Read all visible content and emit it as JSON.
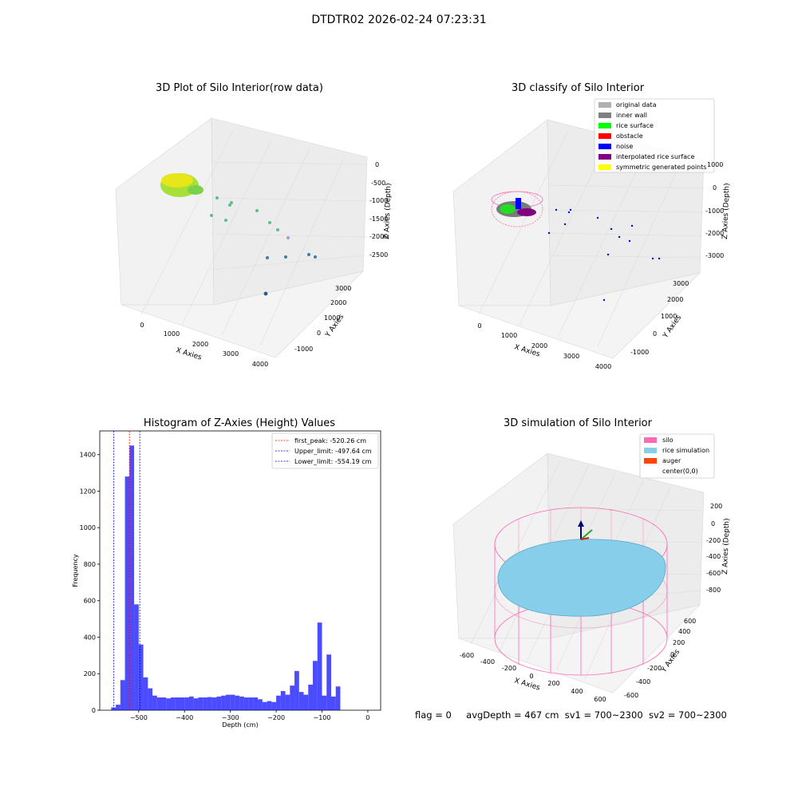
{
  "suptitle": "DTDTR02 2026-02-24 07:23:31",
  "footer": {
    "flag": "flag = 0",
    "avg": "avgDepth = 467 cm",
    "sv1": "sv1 = 700~2300",
    "sv2": "sv2 = 700~2300"
  },
  "plot3d_raw": {
    "title": "3D Plot of Silo Interior(row data)",
    "xlabel": "X Axies",
    "ylabel": "Y Axies",
    "zlabel": "Z Axies (Depth)",
    "xticks": [
      "0",
      "1000",
      "2000",
      "3000",
      "4000"
    ],
    "yticks": [
      "-1000",
      "0",
      "1000",
      "2000",
      "3000"
    ],
    "zticks": [
      "0",
      "-500",
      "-1000",
      "-1500",
      "-2000",
      "-2500"
    ]
  },
  "plot3d_class": {
    "title": "3D classify of Silo Interior",
    "xlabel": "X Axies",
    "ylabel": "Y Axies",
    "zlabel": "Z Axies (Depth)",
    "xticks": [
      "0",
      "1000",
      "2000",
      "3000",
      "4000"
    ],
    "yticks": [
      "-1000",
      "0",
      "1000",
      "2000",
      "3000"
    ],
    "zticks": [
      "1000",
      "0",
      "-1000",
      "-2000",
      "-3000"
    ],
    "legend": [
      {
        "label": "original data",
        "color": "#b0b0b0"
      },
      {
        "label": "inner wall",
        "color": "#808080"
      },
      {
        "label": "rice surface",
        "color": "#00ff00"
      },
      {
        "label": "obstacle",
        "color": "#ff0000"
      },
      {
        "label": "noise",
        "color": "#0000ff"
      },
      {
        "label": "interpolated rice surface",
        "color": "#800080"
      },
      {
        "label": "symmetric generated points",
        "color": "#ffff00"
      }
    ]
  },
  "plot3d_sim": {
    "title": "3D simulation of Silo Interior",
    "xlabel": "X Axies",
    "ylabel": "Y Axies",
    "zlabel": "Z Axies (Depth)",
    "xticks": [
      "-600",
      "-400",
      "-200",
      "0",
      "200",
      "400",
      "600"
    ],
    "yticks": [
      "-600",
      "-400",
      "-200",
      "0",
      "200",
      "400",
      "600"
    ],
    "zticks": [
      "200",
      "0",
      "-200",
      "-400",
      "-600",
      "-800"
    ],
    "legend": [
      {
        "label": "silo",
        "color": "#ff69b4"
      },
      {
        "label": "rice simulation",
        "color": "#87ceeb"
      },
      {
        "label": "auger",
        "color": "#ff4500"
      },
      {
        "label": "center(0,0)",
        "color": ""
      }
    ]
  },
  "chart_data": {
    "type": "bar",
    "title": "Histogram of Z-Axies (Height) Values",
    "xlabel": "Depth (cm)",
    "ylabel": "Frequency",
    "xlim": [
      -585,
      28
    ],
    "ylim": [
      0,
      1530
    ],
    "bar_color": "#0000ff",
    "bin_width": 10,
    "bin_starts": [
      -560,
      -550,
      -540,
      -530,
      -520,
      -510,
      -500,
      -490,
      -480,
      -470,
      -460,
      -450,
      -440,
      -430,
      -420,
      -410,
      -400,
      -390,
      -380,
      -370,
      -360,
      -350,
      -340,
      -330,
      -320,
      -310,
      -300,
      -290,
      -280,
      -270,
      -260,
      -250,
      -240,
      -230,
      -220,
      -210,
      -200,
      -190,
      -180,
      -170,
      -160,
      -150,
      -140,
      -130,
      -120,
      -110,
      -100,
      -90,
      -80,
      -70,
      -60,
      -50,
      -40,
      -30,
      -20,
      -10
    ],
    "values": [
      15,
      30,
      165,
      1280,
      1450,
      580,
      360,
      180,
      120,
      80,
      70,
      70,
      65,
      70,
      70,
      70,
      70,
      75,
      65,
      70,
      70,
      72,
      70,
      75,
      80,
      85,
      85,
      80,
      75,
      70,
      70,
      70,
      60,
      45,
      50,
      45,
      80,
      105,
      85,
      135,
      215,
      100,
      85,
      140,
      270,
      480,
      80,
      305,
      75,
      130,
      0,
      0,
      0,
      0,
      0,
      0
    ],
    "xticks": [
      "−500",
      "−400",
      "−300",
      "−200",
      "−100",
      "0"
    ],
    "xtick_values": [
      -500,
      -400,
      -300,
      -200,
      -100,
      0
    ],
    "yticks": [
      "0",
      "200",
      "400",
      "600",
      "800",
      "1000",
      "1200",
      "1400"
    ],
    "ytick_values": [
      0,
      200,
      400,
      600,
      800,
      1000,
      1200,
      1400
    ],
    "vlines": [
      {
        "label": "first_peak: -520.26 cm",
        "value": -520.26,
        "color": "#ff0000"
      },
      {
        "label": "Upper_limit: -497.64 cm",
        "value": -497.64,
        "color": "#0000cc"
      },
      {
        "label": "Lower_limit: -554.19 cm",
        "value": -554.19,
        "color": "#0000cc"
      }
    ],
    "legend_position": "top-right"
  }
}
